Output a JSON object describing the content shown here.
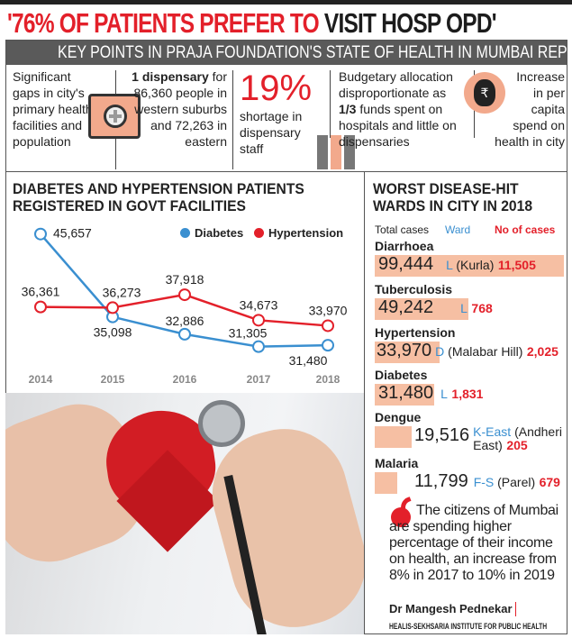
{
  "headline": {
    "red": "'76% OF PATIENTS PREFER TO",
    "black": "VISIT HOSP OPD'"
  },
  "keypoints_title": "KEY POINTS IN PRAJA FOUNDATION'S STATE OF HEALTH IN MUMBAI REPORT",
  "keypoints": {
    "gaps": "Significant gaps in city's primary health facilities and population",
    "dispensary_bold": "1 dispensary",
    "dispensary_rest": " for 86,360 people in western suburbs and 72,263 in eastern",
    "shortage_pct": "19%",
    "shortage_text": "shortage in dispensary staff",
    "budget_pre": "Budgetary allocation disproportionate as ",
    "budget_bold": "1/3",
    "budget_post": " funds spent on hospitals and little on dispensaries",
    "increase": "Increase in per capita spend on health in city",
    "rupee": "₹"
  },
  "chart_data": {
    "type": "line",
    "title": "DIABETES AND HYPERTENSION PATIENTS REGISTERED IN GOVT FACILITIES",
    "x": [
      "2014",
      "2015",
      "2016",
      "2017",
      "2018"
    ],
    "ylim": [
      30000,
      47000
    ],
    "grid": false,
    "legend": "top-right",
    "series": [
      {
        "name": "Diabetes",
        "color": "#3a8fd0",
        "values": [
          45657,
          35098,
          32886,
          31305,
          31480
        ],
        "labels": [
          "45,657",
          "35,098",
          "32,886",
          "31,305",
          "31,480"
        ]
      },
      {
        "name": "Hypertension",
        "color": "#e3202a",
        "values": [
          36361,
          36273,
          37918,
          34673,
          33970
        ],
        "labels": [
          "36,361",
          "36,273",
          "37,918",
          "34,673",
          "33,970"
        ]
      }
    ]
  },
  "wards": {
    "title1": "WORST DISEASE-HIT",
    "title2": "WARDS IN CITY IN 2018",
    "hdr_total": "Total cases",
    "hdr_ward": "Ward",
    "hdr_cases": "No of cases",
    "items": [
      {
        "disease": "Diarrhoea",
        "total": "99,444",
        "ward": "L",
        "ward_note": " (Kurla)",
        "cases": "11,505",
        "value": 99444
      },
      {
        "disease": "Tuberculosis",
        "total": "49,242",
        "ward": "L",
        "ward_note": "",
        "cases": "768",
        "value": 49242
      },
      {
        "disease": "Hypertension",
        "total": "33,970",
        "ward": "D",
        "ward_note": " (Malabar Hill)",
        "cases": "2,025",
        "value": 33970
      },
      {
        "disease": "Diabetes",
        "total": "31,480",
        "ward": "L",
        "ward_note": "",
        "cases": "1,831",
        "value": 31480
      },
      {
        "disease": "Dengue",
        "total": "19,516",
        "ward": "K-East",
        "ward_note": " (Andheri East)",
        "cases": "205",
        "value": 19516
      },
      {
        "disease": "Malaria",
        "total": "11,799",
        "ward": "F-S",
        "ward_note": " (Parel)",
        "cases": "679",
        "value": 11799
      }
    ]
  },
  "quote": {
    "text": "The citizens of Mumbai are spending higher percentage of their income on health, an increase from 8% in 2017 to 10% in 2019",
    "author": "Dr Mangesh Pednekar",
    "org": "HEALIS-SEKHSARIA INSTITUTE FOR PUBLIC HEALTH"
  },
  "colors": {
    "red": "#e3202a",
    "blue": "#3a8fd0",
    "peach": "#f6bfa3",
    "bar": "#5a5a5a"
  }
}
